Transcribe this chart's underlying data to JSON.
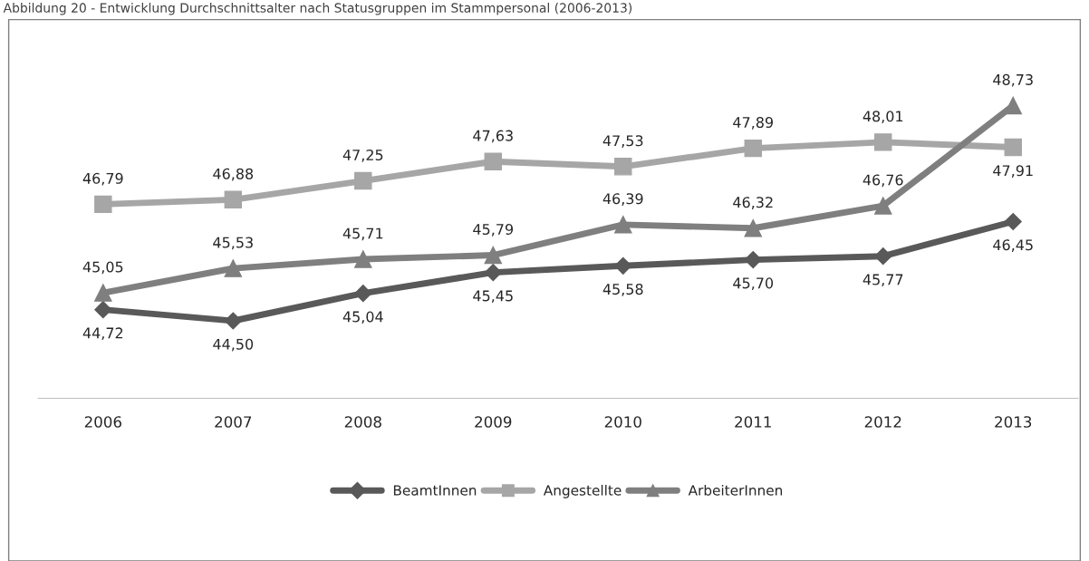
{
  "chart_data": {
    "type": "line",
    "title": "Abbildung 20 - Entwicklung Durchschnittsalter nach Statusgruppen im Stammpersonal (2006-2013)",
    "categories": [
      "2006",
      "2007",
      "2008",
      "2009",
      "2010",
      "2011",
      "2012",
      "2013"
    ],
    "series": [
      {
        "name": "BeamtInnen",
        "color": "#595959",
        "marker": "diamond",
        "values": [
          44.72,
          44.5,
          45.04,
          45.45,
          45.58,
          45.7,
          45.77,
          46.45
        ],
        "value_labels": [
          "44,72",
          "44,50",
          "45,04",
          "45,45",
          "45,58",
          "45,70",
          "45,77",
          "46,45"
        ]
      },
      {
        "name": "Angestellte",
        "color": "#a6a6a6",
        "marker": "square",
        "values": [
          46.79,
          46.88,
          47.25,
          47.63,
          47.53,
          47.89,
          48.01,
          47.91
        ],
        "value_labels": [
          "46,79",
          "46,88",
          "47,25",
          "47,63",
          "47,53",
          "47,89",
          "48,01",
          "47,91"
        ]
      },
      {
        "name": "ArbeiterInnen",
        "color": "#7f7f7f",
        "marker": "triangle",
        "values": [
          45.05,
          45.53,
          45.71,
          45.79,
          46.39,
          46.32,
          46.76,
          48.73
        ],
        "value_labels": [
          "45,05",
          "45,53",
          "45,71",
          "45,79",
          "46,39",
          "46,32",
          "46,76",
          "48,73"
        ]
      }
    ],
    "grid": false,
    "legend": "bottom"
  }
}
